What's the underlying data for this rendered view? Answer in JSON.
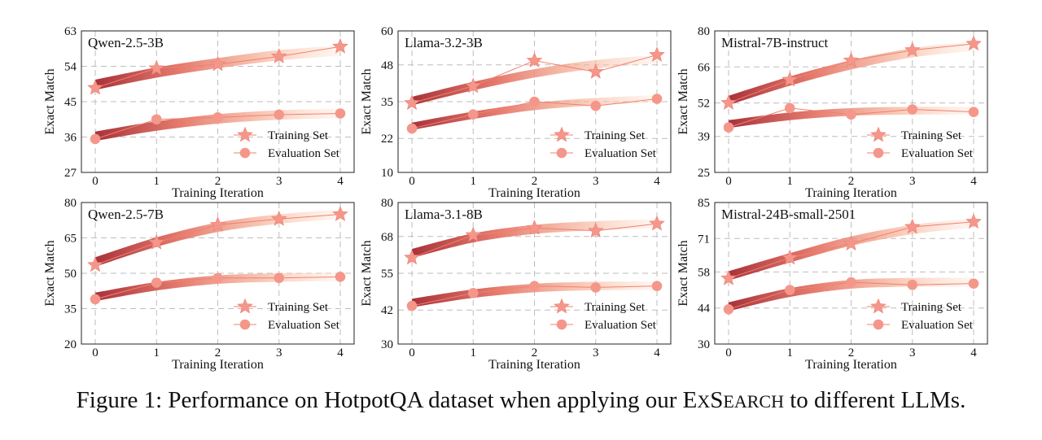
{
  "caption": {
    "prefix": "Figure 1: Performance on HotpotQA dataset when applying our E",
    "sc1": "X",
    "mid": "S",
    "sc2": "EARCH",
    "suffix": " to different LLMs."
  },
  "colors": {
    "marker": "#f4978a",
    "line": "#f08070",
    "band_dark": "#a8323a",
    "band_light": "#fde5d6",
    "grid": "#bdbdbd",
    "axis": "#222222"
  },
  "chart_data": [
    {
      "type": "line",
      "title": "Qwen-2.5-3B",
      "xlabel": "Training Iteration",
      "ylabel": "Exact Match",
      "x": [
        0,
        1,
        2,
        3,
        4
      ],
      "xticks": [
        "0",
        "1",
        "2",
        "3",
        "4"
      ],
      "yticks": [
        "27",
        "36",
        "45",
        "54",
        "63"
      ],
      "ylim": [
        27,
        63
      ],
      "series": [
        {
          "name": "Training Set",
          "marker": "star",
          "values": [
            48.5,
            53.5,
            54.5,
            56.5,
            59
          ]
        },
        {
          "name": "Evaluation Set",
          "marker": "circle",
          "values": [
            35.5,
            40.5,
            41,
            41.7,
            42
          ]
        }
      ],
      "bands": [
        {
          "center": [
            49.3,
            52.4,
            54.8,
            56.8,
            58.0
          ],
          "halfwidth": 1.3
        },
        {
          "center": [
            36.2,
            38.8,
            40.6,
            41.6,
            42.0
          ],
          "halfwidth": 1.2
        }
      ],
      "grid": true,
      "legend": "lower-right"
    },
    {
      "type": "line",
      "title": "Llama-3.2-3B",
      "xlabel": "Training Iteration",
      "ylabel": "Exact Match",
      "x": [
        0,
        1,
        2,
        3,
        4
      ],
      "xticks": [
        "0",
        "1",
        "2",
        "3",
        "4"
      ],
      "yticks": [
        "10",
        "22",
        "35",
        "48",
        "60"
      ],
      "ylim": [
        10,
        60
      ],
      "series": [
        {
          "name": "Training Set",
          "marker": "star",
          "values": [
            34.5,
            40.5,
            49.5,
            45.5,
            51.5
          ]
        },
        {
          "name": "Evaluation Set",
          "marker": "circle",
          "values": [
            25.5,
            30.5,
            35,
            33.5,
            36
          ]
        }
      ],
      "bands": [
        {
          "center": [
            35.2,
            40.5,
            45.0,
            48.2,
            50.0
          ],
          "halfwidth": 1.5
        },
        {
          "center": [
            26.3,
            30.2,
            33.3,
            35.0,
            36.0
          ],
          "halfwidth": 1.3
        }
      ],
      "grid": true,
      "legend": "lower-right"
    },
    {
      "type": "line",
      "title": "Mistral-7B-instruct",
      "xlabel": "Training Iteration",
      "ylabel": "Exact Match",
      "x": [
        0,
        1,
        2,
        3,
        4
      ],
      "xticks": [
        "0",
        "1",
        "2",
        "3",
        "4"
      ],
      "yticks": [
        "25",
        "39",
        "52",
        "66",
        "80"
      ],
      "ylim": [
        25,
        80
      ],
      "series": [
        {
          "name": "Training Set",
          "marker": "star",
          "values": [
            52,
            61,
            68.5,
            72.5,
            75
          ]
        },
        {
          "name": "Evaluation Set",
          "marker": "circle",
          "values": [
            42.5,
            50,
            47.5,
            49.5,
            48.5
          ]
        }
      ],
      "bands": [
        {
          "center": [
            53.0,
            60.5,
            66.8,
            71.5,
            74.0
          ],
          "halfwidth": 1.8
        },
        {
          "center": [
            43.8,
            46.8,
            48.5,
            49.0,
            49.0
          ],
          "halfwidth": 1.5
        }
      ],
      "grid": true,
      "legend": "lower-right"
    },
    {
      "type": "line",
      "title": "Qwen-2.5-7B",
      "xlabel": "Training Iteration",
      "ylabel": "Exact Match",
      "x": [
        0,
        1,
        2,
        3,
        4
      ],
      "xticks": [
        "0",
        "1",
        "2",
        "3",
        "4"
      ],
      "yticks": [
        "20",
        "35",
        "50",
        "65",
        "80"
      ],
      "ylim": [
        20,
        80
      ],
      "series": [
        {
          "name": "Training Set",
          "marker": "star",
          "values": [
            53.5,
            63,
            70.5,
            73,
            75
          ]
        },
        {
          "name": "Evaluation Set",
          "marker": "circle",
          "values": [
            39,
            46,
            48,
            48,
            48.5
          ]
        }
      ],
      "bands": [
        {
          "center": [
            54.8,
            63.2,
            69.5,
            73.0,
            75.0
          ],
          "halfwidth": 2.0
        },
        {
          "center": [
            40.0,
            44.5,
            47.3,
            48.2,
            48.5
          ],
          "halfwidth": 1.8
        }
      ],
      "grid": true,
      "legend": "lower-right"
    },
    {
      "type": "line",
      "title": "Llama-3.1-8B",
      "xlabel": "Training Iteration",
      "ylabel": "Exact Match",
      "x": [
        0,
        1,
        2,
        3,
        4
      ],
      "xticks": [
        "0",
        "1",
        "2",
        "3",
        "4"
      ],
      "yticks": [
        "30",
        "42",
        "55",
        "68",
        "80"
      ],
      "ylim": [
        30,
        80
      ],
      "series": [
        {
          "name": "Training Set",
          "marker": "star",
          "values": [
            60.5,
            68.5,
            71,
            70,
            72.5
          ]
        },
        {
          "name": "Evaluation Set",
          "marker": "circle",
          "values": [
            43.5,
            48,
            50.5,
            50,
            50.5
          ]
        }
      ],
      "bands": [
        {
          "center": [
            62.0,
            67.5,
            70.5,
            71.8,
            72.5
          ],
          "halfwidth": 1.6
        },
        {
          "center": [
            44.5,
            47.8,
            49.8,
            50.5,
            50.6
          ],
          "halfwidth": 1.5
        }
      ],
      "grid": true,
      "legend": "lower-right"
    },
    {
      "type": "line",
      "title": "Mistral-24B-small-2501",
      "xlabel": "Training Iteration",
      "ylabel": "Exact Match",
      "x": [
        0,
        1,
        2,
        3,
        4
      ],
      "xticks": [
        "0",
        "1",
        "2",
        "3",
        "4"
      ],
      "yticks": [
        "30",
        "44",
        "58",
        "71",
        "85"
      ],
      "ylim": [
        30,
        85
      ],
      "series": [
        {
          "name": "Training Set",
          "marker": "star",
          "values": [
            55.5,
            63.5,
            69,
            75.5,
            77.5
          ]
        },
        {
          "name": "Evaluation Set",
          "marker": "circle",
          "values": [
            43.5,
            51,
            54,
            53,
            53.5
          ]
        }
      ],
      "bands": [
        {
          "center": [
            56.5,
            63.5,
            70.0,
            74.5,
            77.0
          ],
          "halfwidth": 1.8
        },
        {
          "center": [
            44.5,
            50.0,
            53.2,
            54.0,
            54.0
          ],
          "halfwidth": 1.7
        }
      ],
      "grid": true,
      "legend": "lower-right"
    }
  ]
}
